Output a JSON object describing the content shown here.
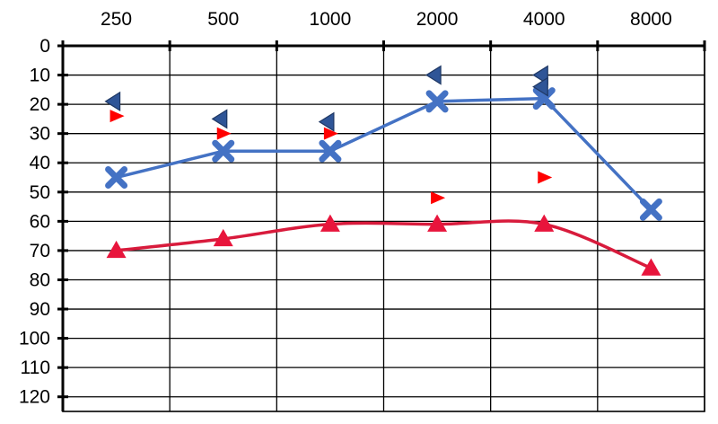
{
  "chart_data": {
    "type": "line",
    "title": "",
    "xlabel": "",
    "ylabel": "",
    "x_ticks": [
      "250",
      "500",
      "1000",
      "2000",
      "4000",
      "8000"
    ],
    "y_ticks": [
      "0",
      "10",
      "20",
      "30",
      "40",
      "50",
      "60",
      "70",
      "80",
      "90",
      "100",
      "110",
      "120"
    ],
    "ylim": [
      0,
      120
    ],
    "y_inverted": true,
    "x_scale": "log",
    "grid": true,
    "colors": {
      "blue": "#4472c4",
      "blue_marker": "#2f5597",
      "red": "#e8153c",
      "red_marker": "#ff0000",
      "red_curve": "#d81b3c"
    },
    "series": [
      {
        "marker": "cross",
        "color": "blue",
        "connected": true,
        "points": [
          {
            "x": "250",
            "y": 45
          },
          {
            "x": "500",
            "y": 36
          },
          {
            "x": "1000",
            "y": 36
          },
          {
            "x": "2000",
            "y": 19
          },
          {
            "x": "4000",
            "y": 18
          },
          {
            "x": "8000",
            "y": 56
          }
        ]
      },
      {
        "marker": "triangle",
        "color": "red",
        "connected": true,
        "smooth": true,
        "points": [
          {
            "x": "250",
            "y": 70
          },
          {
            "x": "500",
            "y": 66
          },
          {
            "x": "1000",
            "y": 61
          },
          {
            "x": "2000",
            "y": 61
          },
          {
            "x": "4000",
            "y": 61
          },
          {
            "x": "8000",
            "y": 76
          }
        ]
      },
      {
        "marker": "bracket-left",
        "color": "blue",
        "connected": false,
        "points": [
          {
            "x": "250",
            "y": 19
          },
          {
            "x": "500",
            "y": 25
          },
          {
            "x": "1000",
            "y": 26
          },
          {
            "x": "2000",
            "y": 10
          },
          {
            "x": "4000",
            "y": 10
          },
          {
            "x": "4000",
            "y": 14
          }
        ]
      },
      {
        "marker": "bracket-right",
        "color": "red",
        "connected": false,
        "points": [
          {
            "x": "250",
            "y": 24
          },
          {
            "x": "500",
            "y": 30
          },
          {
            "x": "1000",
            "y": 30
          },
          {
            "x": "2000",
            "y": 52
          },
          {
            "x": "4000",
            "y": 45
          }
        ]
      }
    ]
  }
}
